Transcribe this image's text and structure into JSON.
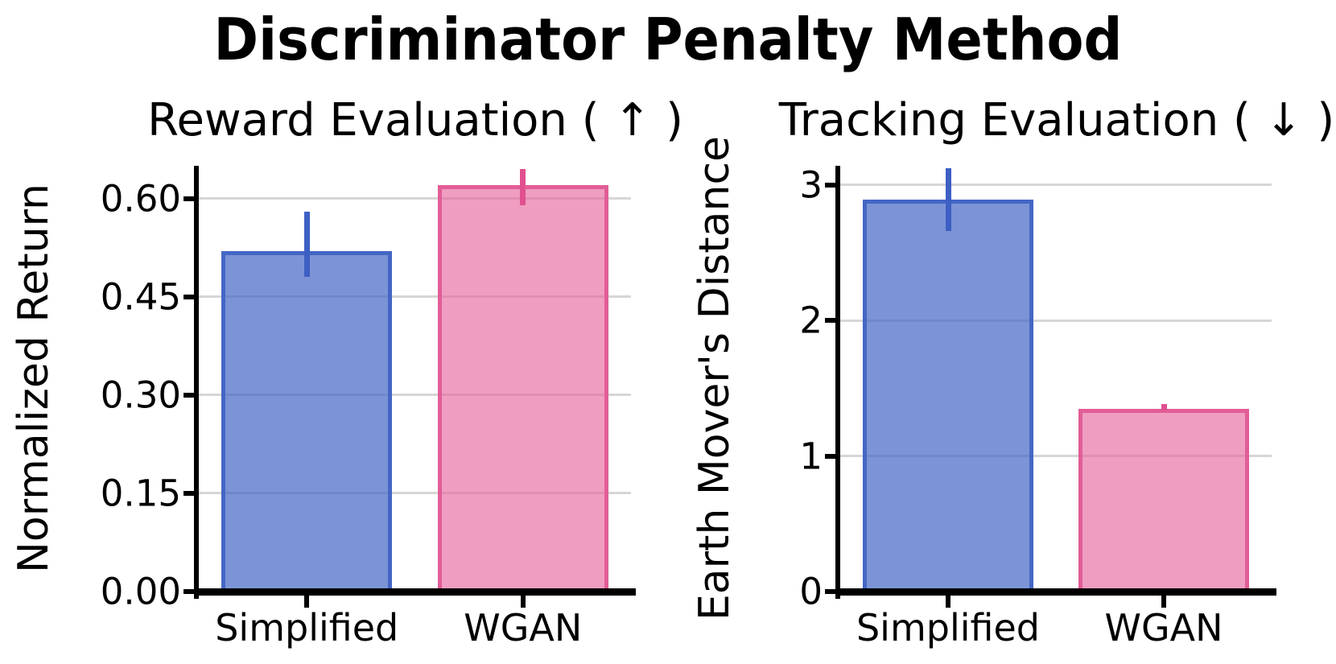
{
  "figure": {
    "title": "Discriminator Penalty Method",
    "background": "#ffffff",
    "text_color": "#000000",
    "grid_color": "#d6d6d6"
  },
  "chart_data": [
    {
      "type": "bar",
      "title": "Reward Evaluation ( ↑ )",
      "ylabel": "Normalized Return",
      "xlabel": "",
      "categories": [
        "Simplified",
        "WGAN"
      ],
      "values": [
        0.52,
        0.62
      ],
      "error_low": [
        0.48,
        0.59
      ],
      "error_high": [
        0.58,
        0.645
      ],
      "yticks": [
        0.0,
        0.15,
        0.3,
        0.45,
        0.6
      ],
      "ytick_labels": [
        "0.00",
        "0.15",
        "0.30",
        "0.45",
        "0.60"
      ],
      "ylim": [
        0,
        0.65
      ],
      "grid": true,
      "legend": "none",
      "series_colors": [
        {
          "name": "Simplified",
          "fill": "rgba(68,102,196,0.70)",
          "edge": "#4466c4",
          "error": "#3d5fc4"
        },
        {
          "name": "WGAN",
          "fill": "rgba(229,99,157,0.63)",
          "edge": "#e25d97",
          "error": "#e0508f"
        }
      ]
    },
    {
      "type": "bar",
      "title": "Tracking Evaluation ( ↓ )",
      "ylabel": "Earth Mover's Distance",
      "xlabel": "",
      "categories": [
        "Simplified",
        "WGAN"
      ],
      "values": [
        2.89,
        1.35
      ],
      "error_low": [
        2.66,
        1.335
      ],
      "error_high": [
        3.12,
        1.385
      ],
      "yticks": [
        0,
        1,
        2,
        3
      ],
      "ytick_labels": [
        "0",
        "1",
        "2",
        "3"
      ],
      "ylim": [
        0,
        3.14
      ],
      "grid": true,
      "legend": "none",
      "series_colors": [
        {
          "name": "Simplified",
          "fill": "rgba(68,102,196,0.70)",
          "edge": "#4466c4",
          "error": "#3d5fc4"
        },
        {
          "name": "WGAN",
          "fill": "rgba(229,99,157,0.63)",
          "edge": "#e25d97",
          "error": "#e0508f"
        }
      ]
    }
  ]
}
